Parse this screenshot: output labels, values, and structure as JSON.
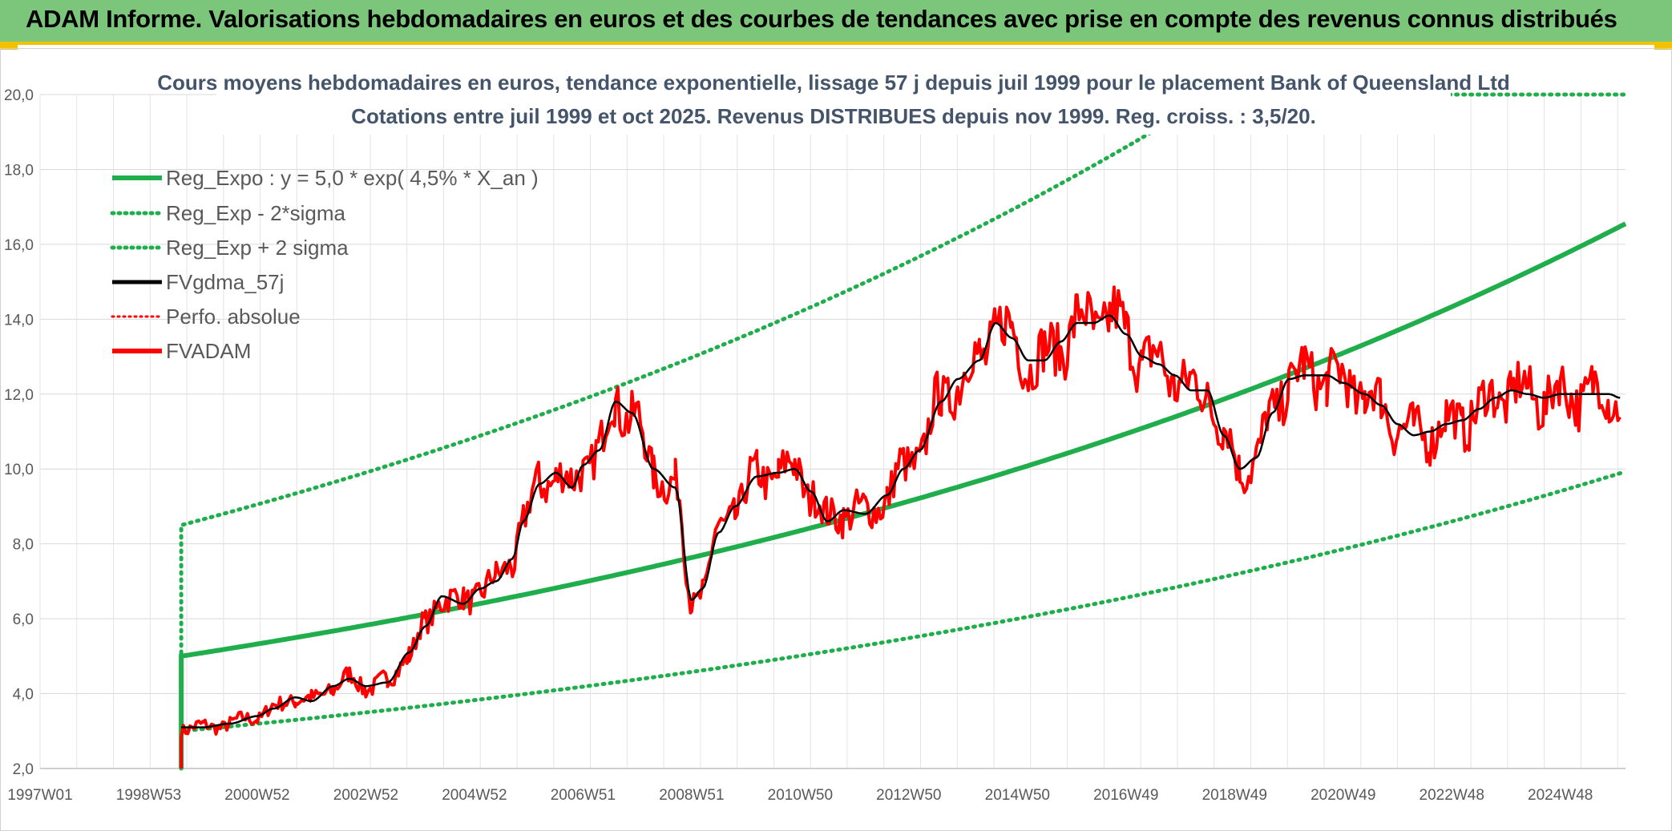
{
  "banner": {
    "title": "ADAM Informe. Valorisations hebdomadaires en euros et des courbes de tendances avec prise en compte des revenus connus distribués"
  },
  "colors": {
    "banner_bg": "#7bc67b",
    "accent_yellow": "#f2c200",
    "reg_green": "#1fae4b",
    "black": "#000000",
    "red": "#ff0000"
  },
  "chart_data": {
    "type": "line",
    "title": "Cours moyens hebdomadaires en euros, tendance exponentielle, lissage 57 j depuis juil 1999 pour le placement Bank of Queensland Ltd",
    "subtitle": "Cotations entre juil 1999 et oct 2025. Revenus DISTRIBUES depuis nov 1999. Reg. croiss. : 3,5/20.",
    "xlabel": "",
    "ylabel": "",
    "xlim": [
      1997.0,
      2026.2
    ],
    "ylim": [
      2.0,
      20.0
    ],
    "grid": true,
    "legend_position": "top-left",
    "x_ticks": [
      {
        "label": "1997W01",
        "x": 1997.0
      },
      {
        "label": "1998W53",
        "x": 1999.0
      },
      {
        "label": "2000W52",
        "x": 2001.0
      },
      {
        "label": "2002W52",
        "x": 2003.0
      },
      {
        "label": "2004W52",
        "x": 2005.0
      },
      {
        "label": "2006W51",
        "x": 2007.0
      },
      {
        "label": "2008W51",
        "x": 2009.0
      },
      {
        "label": "2010W50",
        "x": 2011.0
      },
      {
        "label": "2012W50",
        "x": 2013.0
      },
      {
        "label": "2014W50",
        "x": 2015.0
      },
      {
        "label": "2016W49",
        "x": 2017.0
      },
      {
        "label": "2018W49",
        "x": 2019.0
      },
      {
        "label": "2020W49",
        "x": 2021.0
      },
      {
        "label": "2022W48",
        "x": 2023.0
      },
      {
        "label": "2024W48",
        "x": 2025.0
      }
    ],
    "y_ticks": [
      {
        "label": "2,0",
        "v": 2
      },
      {
        "label": "4,0",
        "v": 4
      },
      {
        "label": "6,0",
        "v": 6
      },
      {
        "label": "8,0",
        "v": 8
      },
      {
        "label": "10,0",
        "v": 10
      },
      {
        "label": "12,0",
        "v": 12
      },
      {
        "label": "14,0",
        "v": 14
      },
      {
        "label": "16,0",
        "v": 16
      },
      {
        "label": "18,0",
        "v": 18
      },
      {
        "label": "20,0",
        "v": 20
      }
    ],
    "regression": {
      "start_year": 1999.6,
      "end_year": 2026.2,
      "a": 5.0,
      "growth": 0.045,
      "lower_factor": 0.6,
      "upper_factor": 1.7
    },
    "series": [
      {
        "name": "Reg_Expo : y = 5,0 * exp( 4,5% *  X_an )",
        "style": "solid-green"
      },
      {
        "name": "Reg_Exp - 2*sigma",
        "style": "dotted-green"
      },
      {
        "name": "Reg_Exp + 2 sigma",
        "style": "dotted-green"
      },
      {
        "name": "FVgdma_57j",
        "style": "solid-black",
        "x": [
          1999.6,
          2000.0,
          2000.5,
          2001.0,
          2001.3,
          2001.7,
          2002.0,
          2002.4,
          2002.7,
          2003.0,
          2003.4,
          2003.8,
          2004.1,
          2004.4,
          2004.8,
          2005.1,
          2005.4,
          2005.7,
          2005.9,
          2006.2,
          2006.5,
          2006.8,
          2007.0,
          2007.3,
          2007.6,
          2007.9,
          2008.3,
          2008.7,
          2009.0,
          2009.2,
          2009.5,
          2009.8,
          2010.2,
          2010.6,
          2010.9,
          2011.2,
          2011.5,
          2011.8,
          2012.2,
          2012.6,
          2012.9,
          2013.2,
          2013.6,
          2013.9,
          2014.3,
          2014.6,
          2014.9,
          2015.2,
          2015.5,
          2015.8,
          2016.1,
          2016.4,
          2016.7,
          2017.0,
          2017.3,
          2017.6,
          2017.9,
          2018.2,
          2018.5,
          2018.8,
          2019.1,
          2019.4,
          2019.7,
          2020.0,
          2020.3,
          2020.7,
          2021.0,
          2021.4,
          2021.7,
          2022.0,
          2022.3,
          2022.6,
          2022.9,
          2023.2,
          2023.5,
          2023.8,
          2024.1,
          2024.4,
          2024.7,
          2025.0,
          2025.3,
          2025.6,
          2025.9,
          2026.1
        ],
        "y": [
          3.1,
          3.1,
          3.2,
          3.4,
          3.6,
          3.9,
          3.8,
          4.2,
          4.4,
          4.2,
          4.3,
          5.1,
          5.8,
          6.6,
          6.4,
          6.8,
          7.0,
          7.6,
          8.6,
          9.6,
          9.9,
          9.5,
          10.1,
          10.5,
          11.8,
          11.5,
          10.0,
          9.5,
          6.5,
          6.8,
          8.3,
          9.0,
          9.8,
          9.9,
          10.0,
          9.4,
          8.6,
          8.9,
          8.8,
          9.3,
          10.0,
          10.5,
          11.8,
          12.4,
          12.9,
          13.9,
          13.5,
          12.9,
          12.9,
          13.4,
          13.9,
          13.9,
          14.1,
          13.6,
          13.0,
          12.8,
          12.5,
          12.1,
          12.1,
          10.9,
          10.0,
          10.3,
          11.5,
          12.4,
          12.5,
          12.5,
          12.3,
          12.0,
          11.7,
          11.2,
          10.9,
          11.0,
          11.2,
          11.3,
          11.6,
          11.9,
          12.1,
          12.0,
          11.9,
          12.0,
          12.0,
          12.0,
          12.0,
          11.9
        ],
        "smooth": true
      },
      {
        "name": "Perfo. absolue",
        "style": "dotted-red"
      },
      {
        "name": "FVADAM",
        "style": "solid-red",
        "x": [
          1999.6,
          2000.0,
          2000.5,
          2001.0,
          2001.3,
          2001.7,
          2002.0,
          2002.4,
          2002.7,
          2003.0,
          2003.4,
          2003.8,
          2004.1,
          2004.4,
          2004.8,
          2005.1,
          2005.4,
          2005.7,
          2005.9,
          2006.2,
          2006.5,
          2006.8,
          2007.0,
          2007.3,
          2007.6,
          2007.9,
          2008.3,
          2008.7,
          2009.0,
          2009.2,
          2009.5,
          2009.8,
          2010.2,
          2010.6,
          2010.9,
          2011.2,
          2011.5,
          2011.8,
          2012.2,
          2012.6,
          2012.9,
          2013.2,
          2013.6,
          2013.9,
          2014.3,
          2014.6,
          2014.9,
          2015.2,
          2015.5,
          2015.8,
          2016.1,
          2016.4,
          2016.7,
          2017.0,
          2017.3,
          2017.6,
          2017.9,
          2018.2,
          2018.5,
          2018.8,
          2019.1,
          2019.4,
          2019.7,
          2020.0,
          2020.3,
          2020.7,
          2021.0,
          2021.4,
          2021.7,
          2022.0,
          2022.3,
          2022.6,
          2022.9,
          2023.2,
          2023.5,
          2023.8,
          2024.1,
          2024.4,
          2024.7,
          2025.0,
          2025.3,
          2025.6,
          2025.9,
          2026.1
        ],
        "y": [
          3.1,
          3.1,
          3.2,
          3.4,
          3.6,
          3.9,
          3.8,
          4.2,
          4.4,
          4.2,
          4.3,
          5.1,
          5.8,
          6.6,
          6.4,
          6.8,
          7.0,
          7.6,
          8.6,
          9.6,
          9.9,
          9.5,
          10.1,
          10.5,
          11.8,
          11.5,
          10.0,
          9.5,
          6.5,
          6.8,
          8.3,
          9.0,
          9.8,
          9.9,
          10.0,
          9.4,
          8.6,
          8.9,
          8.8,
          9.3,
          10.0,
          10.5,
          11.8,
          12.4,
          12.9,
          13.9,
          13.5,
          12.9,
          12.9,
          13.4,
          13.9,
          13.9,
          14.1,
          13.6,
          13.0,
          12.8,
          12.5,
          12.1,
          12.1,
          10.9,
          10.0,
          10.3,
          11.5,
          12.4,
          12.5,
          12.5,
          12.3,
          12.0,
          11.7,
          11.2,
          10.9,
          11.0,
          11.2,
          11.3,
          11.6,
          11.9,
          12.1,
          12.0,
          11.9,
          12.0,
          12.0,
          12.0,
          12.0,
          11.9
        ],
        "noisy": true
      }
    ]
  }
}
